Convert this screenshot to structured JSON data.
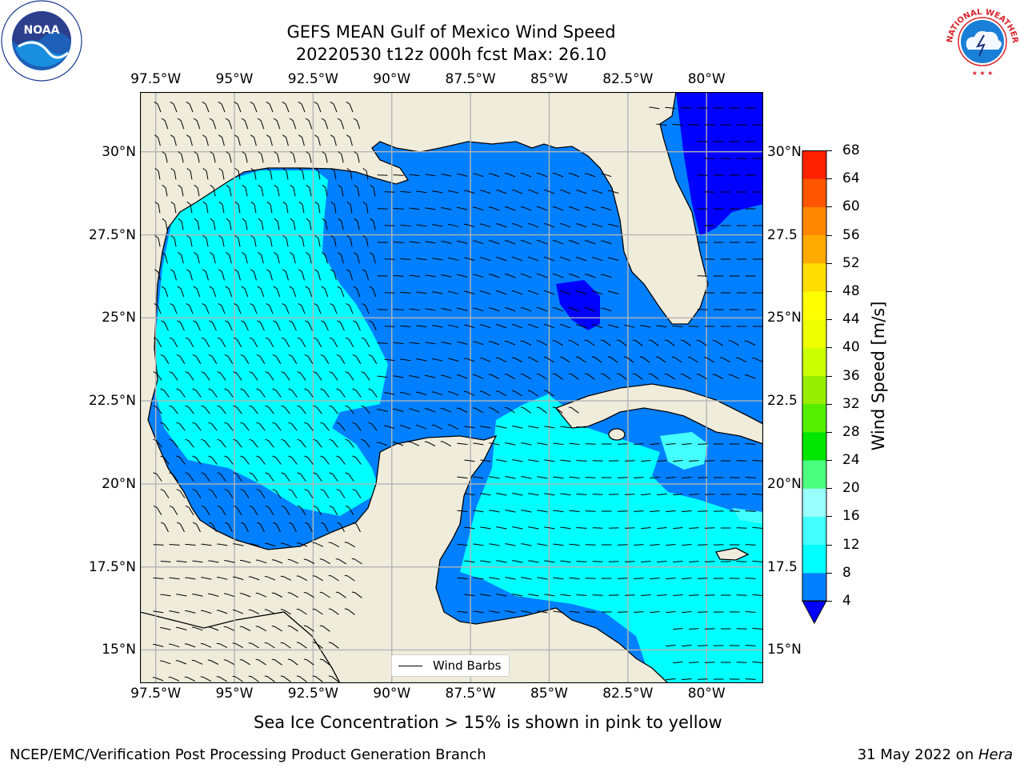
{
  "title": {
    "line1": "GEFS MEAN Gulf of Mexico Wind Speed",
    "line2": "20220530 t12z 000h fcst   Max: 26.10"
  },
  "logos": {
    "left": {
      "text": "NOAA",
      "ring_text": "NATIONAL OCEANIC AND ATMOSPHERIC ADMINISTRATION · U.S. DEPARTMENT OF COMMERCE",
      "icon": "noaa-logo"
    },
    "right": {
      "ring_text": "NATIONAL WEATHER SERVICE",
      "icon": "nws-logo"
    }
  },
  "map": {
    "lon_ticks_top": [
      "97.5°W",
      "95°W",
      "92.5°W",
      "90°W",
      "87.5°W",
      "85°W",
      "82.5°W",
      "80°W"
    ],
    "lon_ticks_bottom": [
      "97.5°W",
      "95°W",
      "92.5°W",
      "90°W",
      "87.5°W",
      "85°W",
      "82.5°W",
      "80°W"
    ],
    "lat_ticks_left": [
      "30°N",
      "27.5°N",
      "25°N",
      "22.5°N",
      "20°N",
      "17.5°N",
      "15°N"
    ],
    "lat_ticks_right": [
      "30°N",
      "27.5",
      "25°N",
      "22.5",
      "20°N",
      "17.5",
      "15°N"
    ],
    "lon_values": [
      -97.5,
      -95,
      -92.5,
      -90,
      -87.5,
      -85,
      -82.5,
      -80
    ],
    "lat_values": [
      30,
      27.5,
      25,
      22.5,
      20,
      17.5,
      15
    ],
    "lon_range": [
      -98,
      -78.2
    ],
    "lat_range": [
      14,
      31.8
    ],
    "land_color": "#efecdc",
    "grid": true,
    "legend": {
      "label": "Wind Barbs",
      "placement": "bottom-center"
    }
  },
  "colorbar": {
    "label": "Wind Speed [m/s]",
    "ticks": [
      "4",
      "8",
      "12",
      "16",
      "20",
      "24",
      "28",
      "32",
      "36",
      "40",
      "44",
      "48",
      "52",
      "56",
      "60",
      "64",
      "68"
    ],
    "colors": [
      "#0080ff",
      "#00ffff",
      "#00ffff",
      "#44ffff",
      "#99ffff",
      "#4dff80",
      "#00e600",
      "#55ee00",
      "#99ee00",
      "#ccff00",
      "#eeff00",
      "#ffff00",
      "#ffdd00",
      "#ffaa00",
      "#ff8800",
      "#ff5500",
      "#ff2200"
    ],
    "under_color": "#0000ff"
  },
  "note": "Sea Ice Concentration > 15% is shown in pink to yellow",
  "footer": {
    "left": "NCEP/EMC/Verification Post Processing Product Generation Branch",
    "right_date": "31 May 2022 on ",
    "right_machine": "Hera"
  }
}
